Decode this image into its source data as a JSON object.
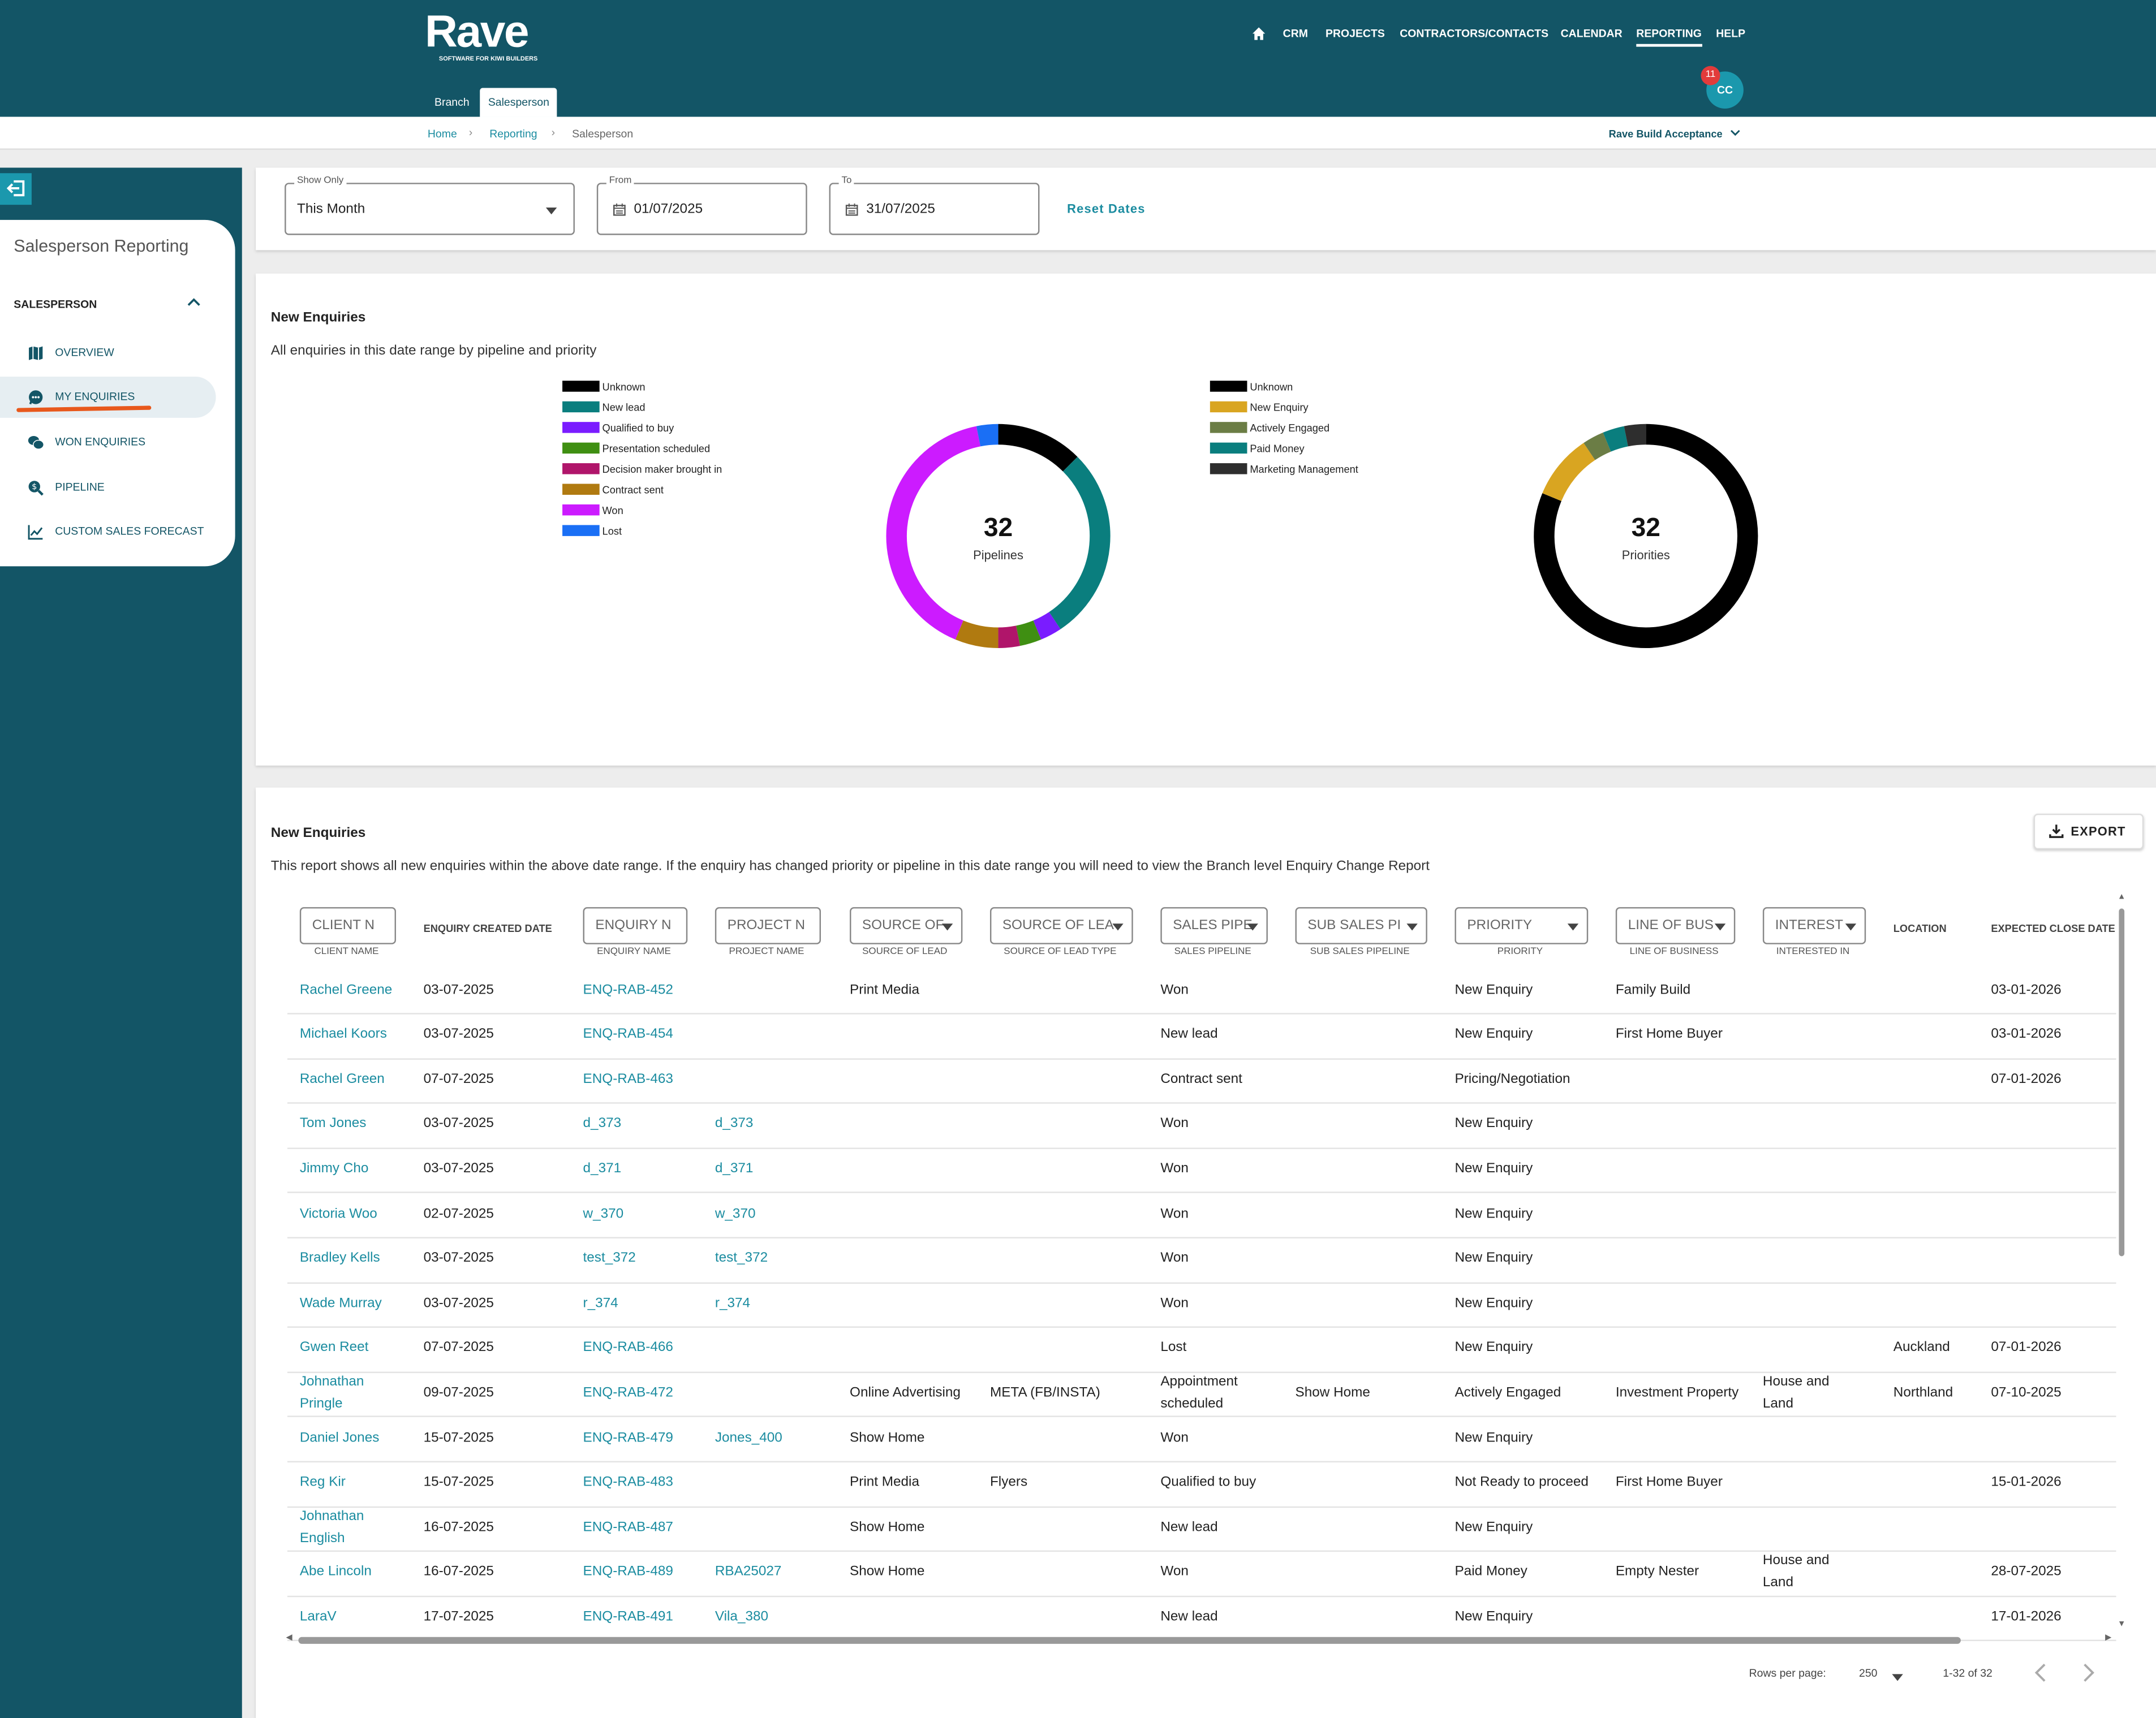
{
  "app": {
    "logo": "Rave",
    "logo_sub": "SOFTWARE FOR KIWI BUILDERS",
    "nav": [
      "CRM",
      "PROJECTS",
      "CONTRACTORS/CONTACTS",
      "CALENDAR",
      "REPORTING",
      "HELP"
    ],
    "nav_active": "REPORTING",
    "notifications": "11",
    "avatar": "CC",
    "subtabs": [
      "Branch",
      "Salesperson"
    ],
    "subtab_active": "Salesperson"
  },
  "breadcrumb": [
    "Home",
    "Reporting",
    "Salesperson"
  ],
  "account": "Rave Build Acceptance",
  "sidebar": {
    "title": "Salesperson Reporting",
    "section": "SALESPERSON",
    "items": [
      {
        "label": "OVERVIEW",
        "icon": "map-icon"
      },
      {
        "label": "MY ENQUIRIES",
        "icon": "chat-icon",
        "selected": true
      },
      {
        "label": "WON ENQUIRIES",
        "icon": "chats-icon"
      },
      {
        "label": "PIPELINE",
        "icon": "money-search-icon"
      },
      {
        "label": "CUSTOM SALES FORECAST",
        "icon": "trend-icon"
      }
    ]
  },
  "filters": {
    "show_only_label": "Show Only",
    "show_only_value": "This Month",
    "from_label": "From",
    "from_value": "01/07/2025",
    "to_label": "To",
    "to_value": "31/07/2025",
    "reset_label": "Reset Dates"
  },
  "charts_card": {
    "title": "New Enquiries",
    "subtitle": "All enquiries in this date range by pipeline and priority"
  },
  "chart_data": [
    {
      "type": "pie",
      "center_value": "32",
      "center_label": "Pipelines",
      "categories": [
        "Unknown",
        "New lead",
        "Qualified to buy",
        "Presentation scheduled",
        "Decision maker brought in",
        "Contract sent",
        "Won",
        "Lost"
      ],
      "colors": [
        "#000000",
        "#0a7e7e",
        "#7a1cff",
        "#3f8f12",
        "#b0156a",
        "#b07a10",
        "#cc1bff",
        "#1a6ff5"
      ],
      "values": [
        4,
        9,
        1,
        1,
        1,
        2,
        13,
        1
      ]
    },
    {
      "type": "pie",
      "center_value": "32",
      "center_label": "Priorities",
      "categories": [
        "Unknown",
        "New Enquiry",
        "Actively Engaged",
        "Paid Money",
        "Marketing Management"
      ],
      "colors": [
        "#000000",
        "#d9a521",
        "#6b7d45",
        "#0a7e7e",
        "#2e2e2e"
      ],
      "values": [
        26,
        3,
        1,
        1,
        1
      ]
    }
  ],
  "table": {
    "title": "New Enquiries",
    "description": "This report shows all new enquiries within the above date range. If the enquiry has changed priority or pipeline in this date range you will need to view the Branch level Enquiry Change Report",
    "export_label": "EXPORT",
    "filters": [
      {
        "ph": "CLIENT N",
        "sub": "CLIENT NAME"
      },
      {
        "ph": "ENQUIRY N",
        "sub": "ENQUIRY NAME"
      },
      {
        "ph": "PROJECT N",
        "sub": "PROJECT NAME"
      },
      {
        "ph": "SOURCE OF",
        "sub": "SOURCE OF LEAD"
      },
      {
        "ph": "SOURCE OF LEA",
        "sub": "SOURCE OF LEAD TYPE"
      },
      {
        "ph": "SALES PIPE",
        "sub": "SALES PIPELINE"
      },
      {
        "ph": "SUB SALES PI",
        "sub": "SUB SALES PIPELINE"
      },
      {
        "ph": "PRIORITY",
        "sub": "PRIORITY"
      },
      {
        "ph": "LINE OF BUS",
        "sub": "LINE OF BUSINESS"
      },
      {
        "ph": "INTEREST",
        "sub": "INTERESTED IN"
      }
    ],
    "plain_headers": [
      "ENQUIRY CREATED DATE",
      "LOCATION",
      "EXPECTED CLOSE DATE"
    ],
    "rows": [
      {
        "client": "Rachel Greene",
        "created": "03-07-2025",
        "enquiry": "ENQ-RAB-452",
        "project": "",
        "source": "Print Media",
        "source_type": "",
        "pipeline": "Won",
        "sub_pipeline": "",
        "priority": "New Enquiry",
        "line": "Family Build",
        "interest": "",
        "location": "",
        "close": "03-01-2026"
      },
      {
        "client": "Michael Koors",
        "created": "03-07-2025",
        "enquiry": "ENQ-RAB-454",
        "project": "",
        "source": "",
        "source_type": "",
        "pipeline": "New lead",
        "sub_pipeline": "",
        "priority": "New Enquiry",
        "line": "First Home Buyer",
        "interest": "",
        "location": "",
        "close": "03-01-2026"
      },
      {
        "client": "Rachel Green",
        "created": "07-07-2025",
        "enquiry": "ENQ-RAB-463",
        "project": "",
        "source": "",
        "source_type": "",
        "pipeline": "Contract sent",
        "sub_pipeline": "",
        "priority": "Pricing/Negotiation",
        "line": "",
        "interest": "",
        "location": "",
        "close": "07-01-2026"
      },
      {
        "client": "Tom Jones",
        "created": "03-07-2025",
        "enquiry": "d_373",
        "project": "d_373",
        "source": "",
        "source_type": "",
        "pipeline": "Won",
        "sub_pipeline": "",
        "priority": "New Enquiry",
        "line": "",
        "interest": "",
        "location": "",
        "close": ""
      },
      {
        "client": "Jimmy Cho",
        "created": "03-07-2025",
        "enquiry": "d_371",
        "project": "d_371",
        "source": "",
        "source_type": "",
        "pipeline": "Won",
        "sub_pipeline": "",
        "priority": "New Enquiry",
        "line": "",
        "interest": "",
        "location": "",
        "close": ""
      },
      {
        "client": "Victoria Woo",
        "created": "02-07-2025",
        "enquiry": "w_370",
        "project": "w_370",
        "source": "",
        "source_type": "",
        "pipeline": "Won",
        "sub_pipeline": "",
        "priority": "New Enquiry",
        "line": "",
        "interest": "",
        "location": "",
        "close": ""
      },
      {
        "client": "Bradley Kells",
        "created": "03-07-2025",
        "enquiry": "test_372",
        "project": "test_372",
        "source": "",
        "source_type": "",
        "pipeline": "Won",
        "sub_pipeline": "",
        "priority": "New Enquiry",
        "line": "",
        "interest": "",
        "location": "",
        "close": ""
      },
      {
        "client": "Wade Murray",
        "created": "03-07-2025",
        "enquiry": "r_374",
        "project": "r_374",
        "source": "",
        "source_type": "",
        "pipeline": "Won",
        "sub_pipeline": "",
        "priority": "New Enquiry",
        "line": "",
        "interest": "",
        "location": "",
        "close": ""
      },
      {
        "client": "Gwen Reet",
        "created": "07-07-2025",
        "enquiry": "ENQ-RAB-466",
        "project": "",
        "source": "",
        "source_type": "",
        "pipeline": "Lost",
        "sub_pipeline": "",
        "priority": "New Enquiry",
        "line": "",
        "interest": "",
        "location": "Auckland",
        "close": "07-01-2026"
      },
      {
        "client": "Johnathan Pringle",
        "created": "09-07-2025",
        "enquiry": "ENQ-RAB-472",
        "project": "",
        "source": "Online Advertising",
        "source_type": "META (FB/INSTA)",
        "pipeline": "Appointment scheduled",
        "sub_pipeline": "Show Home",
        "priority": "Actively Engaged",
        "line": "Investment Property",
        "interest": "House and Land",
        "location": "Northland",
        "close": "07-10-2025"
      },
      {
        "client": "Daniel Jones",
        "created": "15-07-2025",
        "enquiry": "ENQ-RAB-479",
        "project": "Jones_400",
        "source": "Show Home",
        "source_type": "",
        "pipeline": "Won",
        "sub_pipeline": "",
        "priority": "New Enquiry",
        "line": "",
        "interest": "",
        "location": "",
        "close": ""
      },
      {
        "client": "Reg Kir",
        "created": "15-07-2025",
        "enquiry": "ENQ-RAB-483",
        "project": "",
        "source": "Print Media",
        "source_type": "Flyers",
        "pipeline": "Qualified to buy",
        "sub_pipeline": "",
        "priority": "Not Ready to proceed",
        "line": "First Home Buyer",
        "interest": "",
        "location": "",
        "close": "15-01-2026"
      },
      {
        "client": "Johnathan English",
        "created": "16-07-2025",
        "enquiry": "ENQ-RAB-487",
        "project": "",
        "source": "Show Home",
        "source_type": "",
        "pipeline": "New lead",
        "sub_pipeline": "",
        "priority": "New Enquiry",
        "line": "",
        "interest": "",
        "location": "",
        "close": ""
      },
      {
        "client": "Abe Lincoln",
        "created": "16-07-2025",
        "enquiry": "ENQ-RAB-489",
        "project": "RBA25027",
        "source": "Show Home",
        "source_type": "",
        "pipeline": "Won",
        "sub_pipeline": "",
        "priority": "Paid Money",
        "line": "Empty Nester",
        "interest": "House and Land",
        "location": "",
        "close": "28-07-2025"
      },
      {
        "client": "LaraV",
        "created": "17-07-2025",
        "enquiry": "ENQ-RAB-491",
        "project": "Vila_380",
        "source": "",
        "source_type": "",
        "pipeline": "New lead",
        "sub_pipeline": "",
        "priority": "New Enquiry",
        "line": "",
        "interest": "",
        "location": "",
        "close": "17-01-2026"
      }
    ],
    "rows_per_page_label": "Rows per page:",
    "rows_per_page": "250",
    "range": "1-32 of 32"
  }
}
